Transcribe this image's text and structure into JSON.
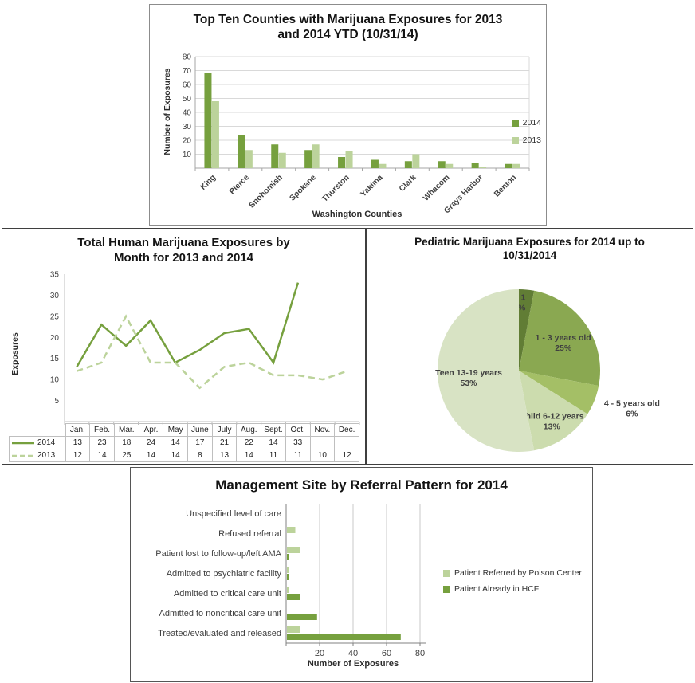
{
  "colors": {
    "axis": "#A6A6A6",
    "axis_light": "#BFBFBF",
    "grid": "#D9D9D9",
    "text": "#404040",
    "green_dark": "#76A03E",
    "green_light": "#BCD39B"
  },
  "chart_data": [
    {
      "id": "counties",
      "type": "bar",
      "title": "Top Ten Counties with Marijuana Exposures for 2013 and 2014 YTD (10/31/14)",
      "xlabel": "Washington Counties",
      "ylabel": "Number of Exposures",
      "ylim": [
        0,
        80
      ],
      "yticks": [
        10,
        20,
        30,
        40,
        50,
        60,
        70,
        80
      ],
      "grid": true,
      "legend_position": "right",
      "categories": [
        "King",
        "Pierce",
        "Snohomish",
        "Spokane",
        "Thurston",
        "Yakima",
        "Clark",
        "Whacom",
        "Grays Harbor",
        "Benton"
      ],
      "series": [
        {
          "name": "2014",
          "color": "#76A03E",
          "values": [
            68,
            24,
            17,
            13,
            8,
            6,
            5,
            5,
            4,
            3
          ]
        },
        {
          "name": "2013",
          "color": "#BCD39B",
          "values": [
            48,
            13,
            11,
            17,
            12,
            3,
            10,
            3,
            1,
            3
          ]
        }
      ]
    },
    {
      "id": "monthly",
      "type": "line",
      "title": "Total Human Marijuana Exposures by Month for 2013 and 2014",
      "ylabel": "Exposures",
      "ylim": [
        0,
        35
      ],
      "yticks": [
        5,
        10,
        15,
        20,
        25,
        30,
        35
      ],
      "grid": false,
      "legend_position": "table-left",
      "categories": [
        "Jan.",
        "Feb.",
        "Mar.",
        "Apr.",
        "May",
        "June",
        "July",
        "Aug.",
        "Sept.",
        "Oct.",
        "Nov.",
        "Dec."
      ],
      "series": [
        {
          "name": "2014",
          "style": "solid",
          "color": "#76A03E",
          "values": [
            13,
            23,
            18,
            24,
            14,
            17,
            21,
            22,
            14,
            33,
            null,
            null
          ]
        },
        {
          "name": "2013",
          "style": "dashed",
          "color": "#BCD39B",
          "values": [
            12,
            14,
            25,
            14,
            14,
            8,
            13,
            14,
            11,
            11,
            10,
            12
          ]
        }
      ]
    },
    {
      "id": "pediatric",
      "type": "pie",
      "title": "Pediatric Marijuana Exposures for 2014 up to 10/31/2014",
      "slices": [
        {
          "label": "< 1",
          "pct": 3,
          "color": "#617D35",
          "label_pos": "inside",
          "label_r": 0.87,
          "label_anchor": "end"
        },
        {
          "label": "1 - 3 years old",
          "pct": 25,
          "color": "#8AA851",
          "label_pos": "inside",
          "label_r": 0.66,
          "label_anchor": "middle"
        },
        {
          "label": "4 - 5 years old",
          "pct": 6,
          "color": "#A4BF66",
          "label_pos": "outside",
          "label_r": 1.18,
          "label_anchor": "middle"
        },
        {
          "label": "Child 6-12 years",
          "pct": 13,
          "color": "#CCDCAE",
          "label_pos": "inside",
          "label_r": 0.72,
          "label_anchor": "middle"
        },
        {
          "label": "Teen 13-19 years",
          "pct": 53,
          "color": "#D8E3C4",
          "label_pos": "inside",
          "label_r": 0.62,
          "label_anchor": "middle"
        }
      ]
    },
    {
      "id": "referral",
      "type": "bar-horizontal",
      "title": "Management Site by Referral Pattern for 2014",
      "xlabel": "Number of Exposures",
      "xlim": [
        0,
        80
      ],
      "xticks": [
        20,
        40,
        60,
        80
      ],
      "grid": true,
      "legend_position": "right",
      "categories": [
        "Unspecified level of care",
        "Refused referral",
        "Patient lost to follow-up/left AMA",
        "Admitted to psychiatric facility",
        "Admitted to critical care unit",
        "Admitted to noncritical care unit",
        "Treated/evaluated and released"
      ],
      "series": [
        {
          "name": "Patient Referred by Poison Center",
          "color": "#BCD39B",
          "values": [
            0,
            5,
            8,
            1,
            1,
            0,
            8
          ]
        },
        {
          "name": "Patient Already in HCF",
          "color": "#76A03E",
          "values": [
            0,
            0,
            1,
            1,
            8,
            18,
            68
          ]
        }
      ]
    }
  ]
}
